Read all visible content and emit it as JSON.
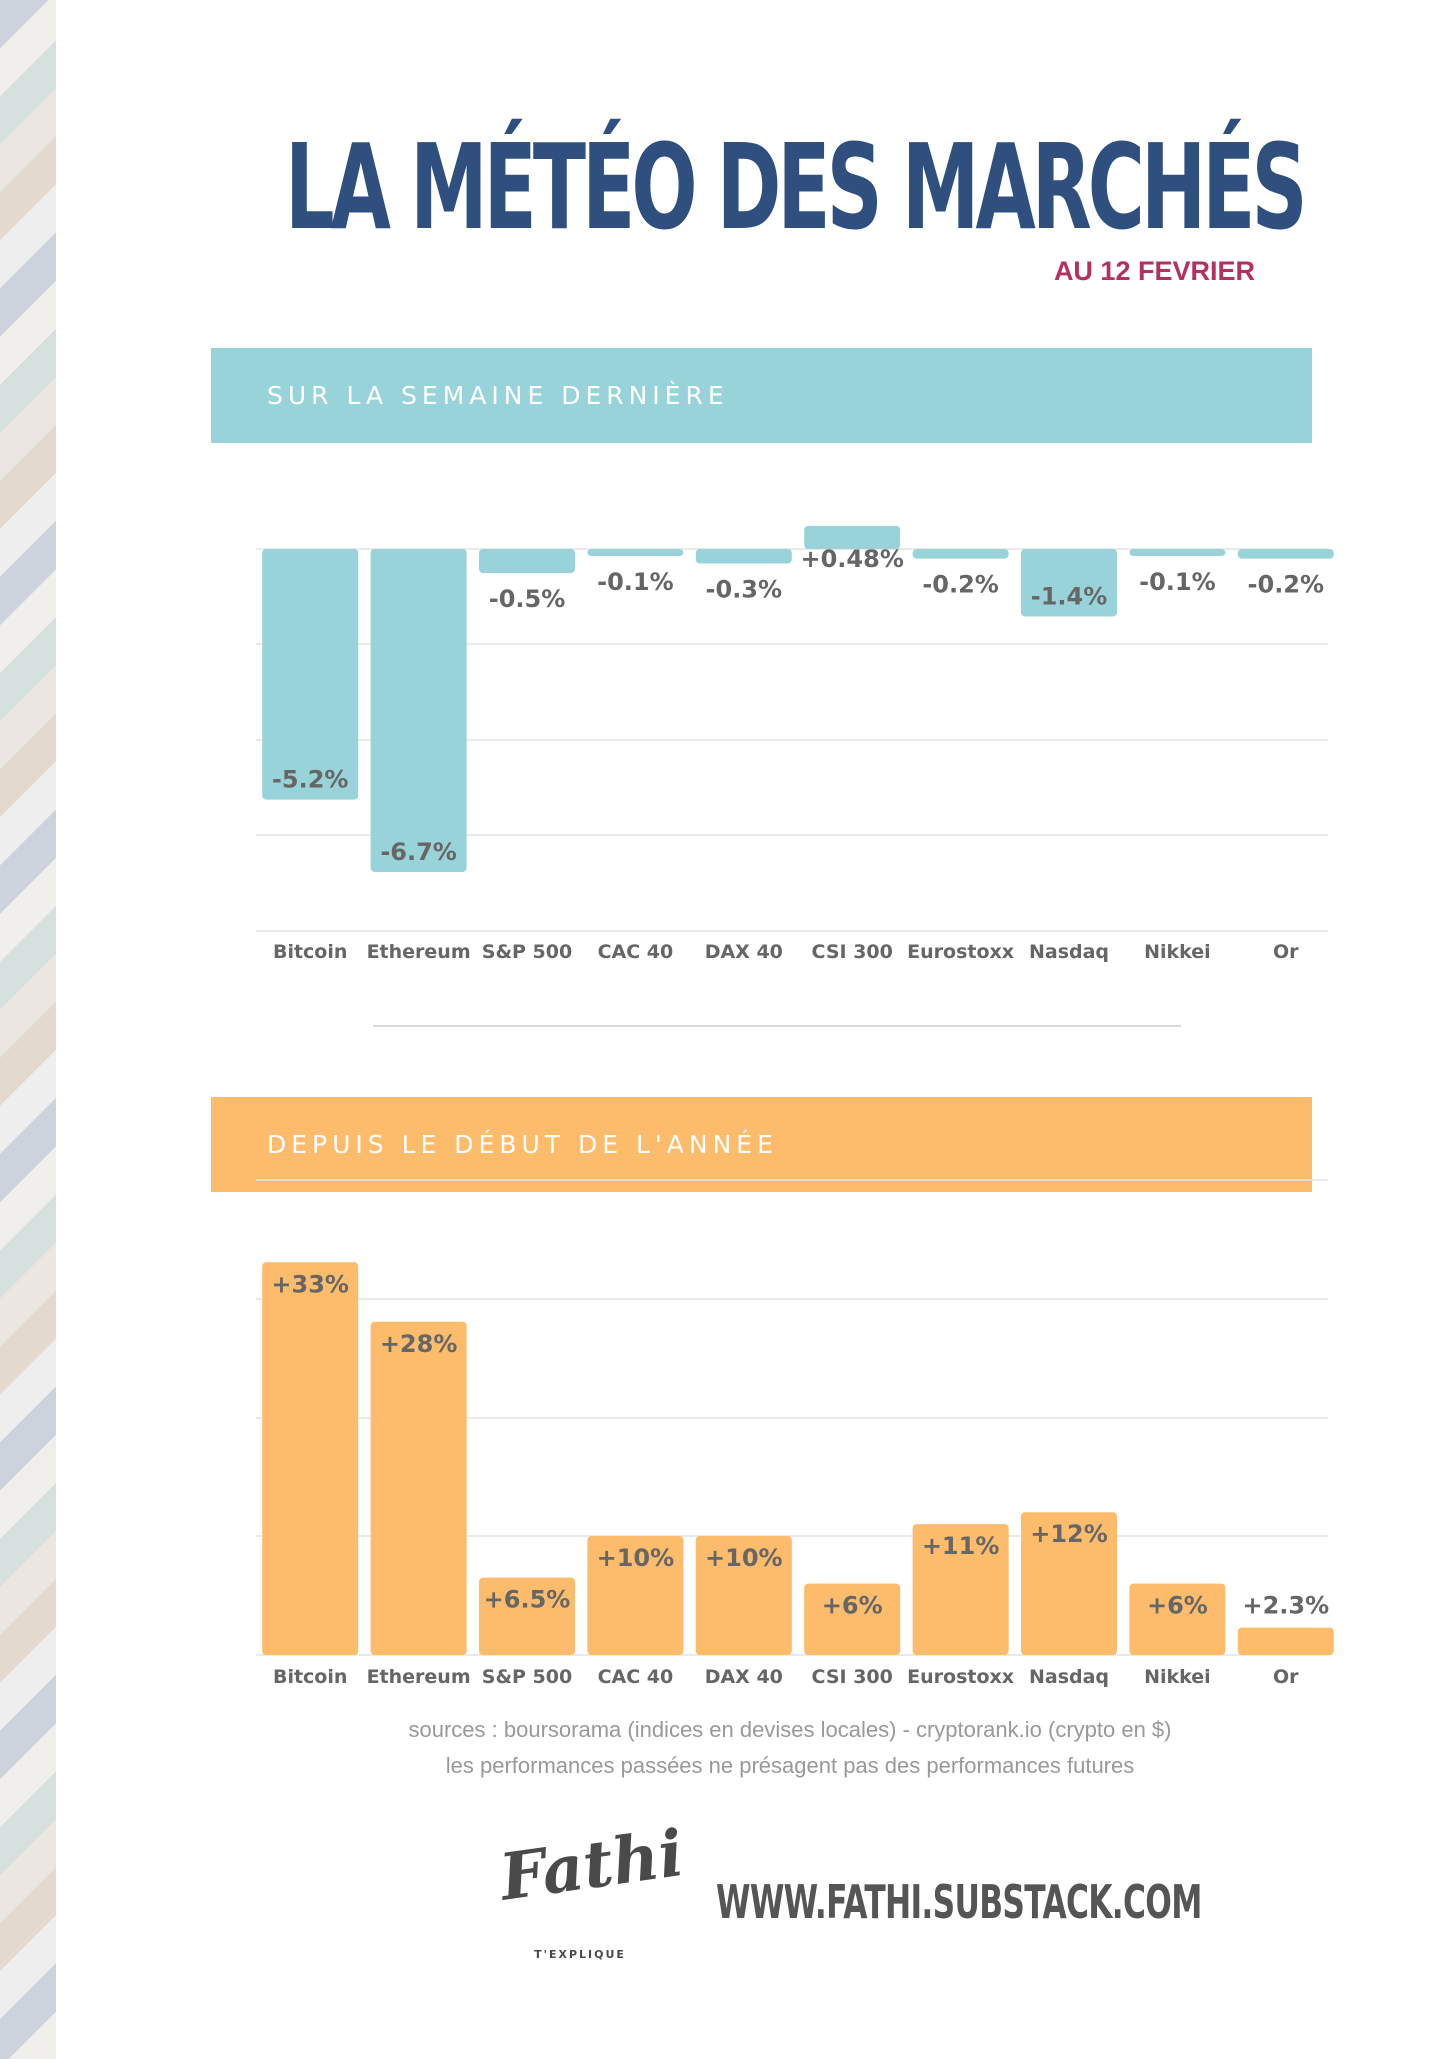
{
  "header": {
    "title": "LA MÉTÉO DES MARCHÉS",
    "subtitle": "AU 12 FEVRIER"
  },
  "colors": {
    "title": "#2f4f7f",
    "subtitle": "#b5305a",
    "week_bar": "#99d3da",
    "ytd_bar": "#fdbb6c",
    "label": "#666666"
  },
  "chart_data": [
    {
      "type": "bar",
      "title": "SUR LA SEMAINE DERNIÈRE",
      "categories": [
        "Bitcoin",
        "Ethereum",
        "S&P 500",
        "CAC 40",
        "DAX 40",
        "CSI 300",
        "Eurostoxx",
        "Nasdaq",
        "Nikkei",
        "Or"
      ],
      "values": [
        -5.2,
        -6.7,
        -0.5,
        -0.1,
        -0.3,
        0.48,
        -0.2,
        -1.4,
        -0.1,
        -0.2
      ],
      "value_labels": [
        "-5.2%",
        "-6.7%",
        "-0.5%",
        "-0.1%",
        "-0.3%",
        "+0.48%",
        "-0.2%",
        "-1.4%",
        "-0.1%",
        "-0.2%"
      ],
      "grid": true
    },
    {
      "type": "bar",
      "title": "DEPUIS LE DÉBUT DE L'ANNÉE",
      "categories": [
        "Bitcoin",
        "Ethereum",
        "S&P 500",
        "CAC 40",
        "DAX 40",
        "CSI 300",
        "Eurostoxx",
        "Nasdaq",
        "Nikkei",
        "Or"
      ],
      "values": [
        33,
        28,
        6.5,
        10,
        10,
        6,
        11,
        12,
        6,
        2.3
      ],
      "value_labels": [
        "+33%",
        "+28%",
        "+6.5%",
        "+10%",
        "+10%",
        "+6%",
        "+11%",
        "+12%",
        "+6%",
        "+2.3%"
      ],
      "grid": true
    }
  ],
  "footer": {
    "sources_line1": "sources : boursorama (indices en devises locales) - cryptorank.io (crypto en $)",
    "sources_line2": "les performances passées ne présagent pas des performances futures",
    "logo_name": "Fathi",
    "logo_tagline": "T'EXPLIQUE",
    "website": "WWW.FATHI.SUBSTACK.COM"
  }
}
